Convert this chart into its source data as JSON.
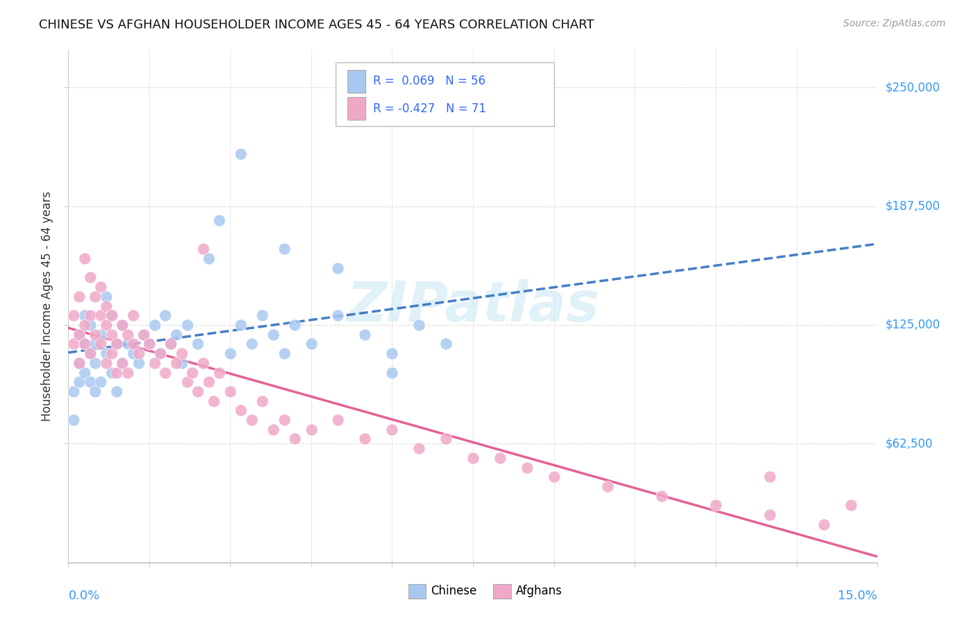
{
  "title": "CHINESE VS AFGHAN HOUSEHOLDER INCOME AGES 45 - 64 YEARS CORRELATION CHART",
  "source": "Source: ZipAtlas.com",
  "ylabel": "Householder Income Ages 45 - 64 years",
  "ytick_labels": [
    "$62,500",
    "$125,000",
    "$187,500",
    "$250,000"
  ],
  "ytick_values": [
    62500,
    125000,
    187500,
    250000
  ],
  "xlim": [
    0.0,
    0.15
  ],
  "ylim": [
    0,
    270000
  ],
  "chinese_color": "#a8c8f0",
  "afghan_color": "#f0a8c8",
  "trendline_chinese_color": "#3070c0",
  "trendline_afghan_color": "#e0508a",
  "R_chinese": 0.069,
  "N_chinese": 56,
  "R_afghan": -0.427,
  "N_afghan": 71,
  "legend_label_chinese": "Chinese",
  "legend_label_afghan": "Afghans",
  "watermark": "ZIPatlas",
  "chinese_x": [
    0.001,
    0.001,
    0.002,
    0.002,
    0.002,
    0.003,
    0.003,
    0.003,
    0.004,
    0.004,
    0.004,
    0.005,
    0.005,
    0.005,
    0.006,
    0.006,
    0.007,
    0.007,
    0.008,
    0.008,
    0.009,
    0.009,
    0.01,
    0.01,
    0.011,
    0.012,
    0.013,
    0.014,
    0.015,
    0.016,
    0.017,
    0.018,
    0.019,
    0.02,
    0.021,
    0.022,
    0.024,
    0.026,
    0.028,
    0.03,
    0.032,
    0.034,
    0.036,
    0.038,
    0.04,
    0.042,
    0.045,
    0.05,
    0.055,
    0.06,
    0.065,
    0.07,
    0.032,
    0.04,
    0.05,
    0.06
  ],
  "chinese_y": [
    90000,
    75000,
    105000,
    120000,
    95000,
    115000,
    100000,
    130000,
    110000,
    95000,
    125000,
    115000,
    90000,
    105000,
    120000,
    95000,
    140000,
    110000,
    130000,
    100000,
    115000,
    90000,
    125000,
    105000,
    115000,
    110000,
    105000,
    120000,
    115000,
    125000,
    110000,
    130000,
    115000,
    120000,
    105000,
    125000,
    115000,
    160000,
    180000,
    110000,
    125000,
    115000,
    130000,
    120000,
    110000,
    125000,
    115000,
    130000,
    120000,
    110000,
    125000,
    115000,
    215000,
    165000,
    155000,
    100000
  ],
  "afghan_x": [
    0.001,
    0.001,
    0.002,
    0.002,
    0.002,
    0.003,
    0.003,
    0.003,
    0.004,
    0.004,
    0.004,
    0.005,
    0.005,
    0.006,
    0.006,
    0.006,
    0.007,
    0.007,
    0.007,
    0.008,
    0.008,
    0.008,
    0.009,
    0.009,
    0.01,
    0.01,
    0.011,
    0.011,
    0.012,
    0.012,
    0.013,
    0.014,
    0.015,
    0.016,
    0.017,
    0.018,
    0.019,
    0.02,
    0.021,
    0.022,
    0.023,
    0.024,
    0.025,
    0.026,
    0.027,
    0.028,
    0.03,
    0.032,
    0.034,
    0.036,
    0.038,
    0.04,
    0.042,
    0.045,
    0.05,
    0.055,
    0.06,
    0.065,
    0.07,
    0.075,
    0.08,
    0.085,
    0.09,
    0.1,
    0.11,
    0.12,
    0.13,
    0.14,
    0.145,
    0.025,
    0.13
  ],
  "afghan_y": [
    130000,
    115000,
    120000,
    140000,
    105000,
    125000,
    115000,
    160000,
    130000,
    110000,
    150000,
    140000,
    120000,
    130000,
    115000,
    145000,
    125000,
    105000,
    135000,
    120000,
    110000,
    130000,
    115000,
    100000,
    125000,
    105000,
    120000,
    100000,
    115000,
    130000,
    110000,
    120000,
    115000,
    105000,
    110000,
    100000,
    115000,
    105000,
    110000,
    95000,
    100000,
    90000,
    105000,
    95000,
    85000,
    100000,
    90000,
    80000,
    75000,
    85000,
    70000,
    75000,
    65000,
    70000,
    75000,
    65000,
    70000,
    60000,
    65000,
    55000,
    55000,
    50000,
    45000,
    40000,
    35000,
    30000,
    25000,
    20000,
    30000,
    165000,
    45000
  ]
}
